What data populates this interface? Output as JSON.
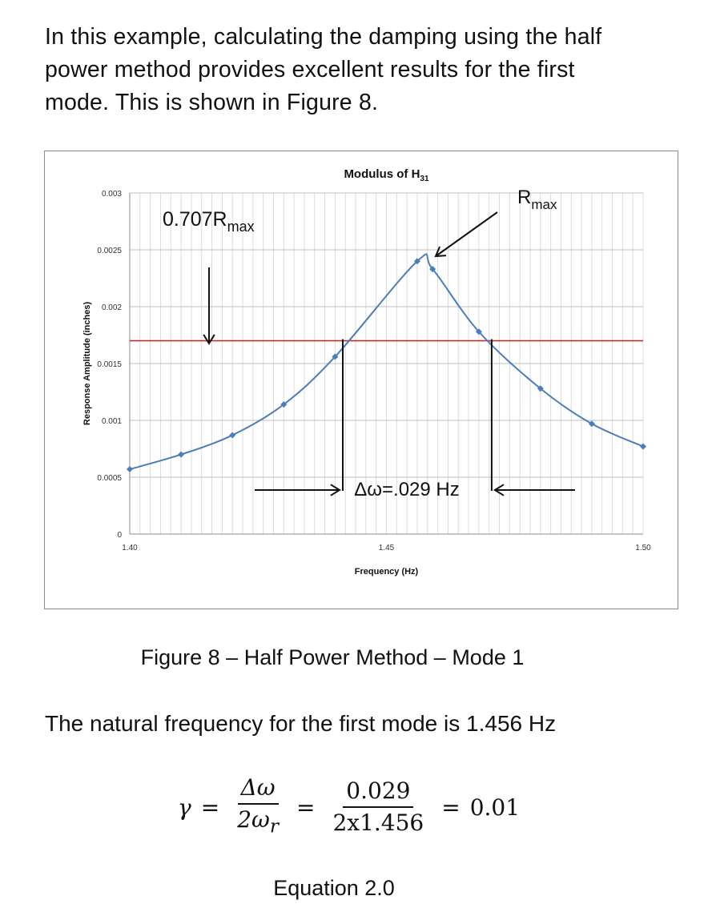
{
  "intro_text": "In this example, calculating the damping using the half power method provides excellent results for the first mode. This is shown in Figure 8.",
  "chart_data": {
    "type": "line",
    "title_main": "Modulus of H",
    "title_sub": "31",
    "xlabel": "Frequency (Hz)",
    "ylabel": "Response Amplitude (inches)",
    "xlim": [
      1.4,
      1.5
    ],
    "ylim": [
      0,
      0.003
    ],
    "x_ticks": [
      "1.40",
      "1.45",
      "1.50"
    ],
    "y_ticks": [
      "0",
      "0.0005",
      "0.001",
      "0.0015",
      "0.002",
      "0.0025",
      "0.003"
    ],
    "grid": true,
    "series": [
      {
        "color": "#4a7ebb",
        "x": [
          1.4,
          1.41,
          1.42,
          1.43,
          1.44,
          1.456,
          1.459,
          1.468,
          1.48,
          1.49,
          1.5
        ],
        "y": [
          0.00057,
          0.0007,
          0.00087,
          0.00114,
          0.00156,
          0.0024,
          0.00233,
          0.00178,
          0.00128,
          0.00097,
          0.00077
        ]
      }
    ],
    "threshold": {
      "color": "#c0302e",
      "y": 0.0017
    },
    "annotations": {
      "rmax_main": "R",
      "rmax_sub": "max",
      "half_main": "0.707R",
      "half_sub": "max",
      "delta": "Δω=.029 Hz"
    },
    "delta_bounds": [
      1.4415,
      1.4705
    ]
  },
  "caption": "Figure 8 – Half Power Method – Mode 1",
  "statement": "The natural frequency for the first mode is 1.456 Hz",
  "equation": {
    "gamma": "γ",
    "eq": "=",
    "num1": "Δω",
    "den1": "2ω",
    "den1_sub": "r",
    "num2": "0.029",
    "den2": "2x1.456",
    "result": "0.01"
  },
  "equation_label": "Equation 2.0"
}
